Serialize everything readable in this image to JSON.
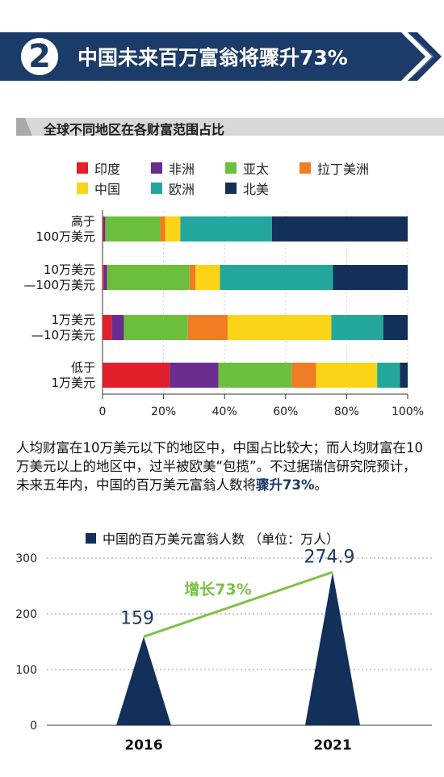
{
  "header": {
    "number": "2",
    "title": "中国未来百万富翁将骤升73%"
  },
  "section": {
    "title": "全球不同地区在各财富范围占比"
  },
  "chart_data": [
    {
      "type": "bar",
      "orientation": "horizontal",
      "stacked": true,
      "categories": [
        "高于\n100万美元",
        "10万美元\n—100万美元",
        "1万美元\n—10万美元",
        "低于\n1万美元"
      ],
      "series": [
        {
          "name": "印度",
          "color": "#e2202c",
          "values": [
            0.4,
            0.5,
            3.0,
            22.0
          ]
        },
        {
          "name": "非洲",
          "color": "#6a2d8f",
          "values": [
            0.5,
            1.0,
            4.0,
            16.0
          ]
        },
        {
          "name": "亚太",
          "color": "#6cbf3d",
          "values": [
            18.0,
            27.0,
            21.0,
            24.0
          ]
        },
        {
          "name": "拉丁美洲",
          "color": "#ee7d23",
          "values": [
            1.6,
            2.0,
            13.0,
            8.0
          ]
        },
        {
          "name": "中国",
          "color": "#fbd417",
          "values": [
            5.0,
            8.0,
            34.0,
            20.0
          ]
        },
        {
          "name": "欧洲",
          "color": "#23a79c",
          "values": [
            30.0,
            37.0,
            17.0,
            7.5
          ]
        },
        {
          "name": "北美",
          "color": "#13305a",
          "values": [
            44.5,
            24.5,
            8.0,
            2.5
          ]
        }
      ],
      "xticks": [
        "0",
        "20%",
        "40%",
        "60%",
        "80%",
        "100%"
      ],
      "xlim": [
        0,
        100
      ],
      "legend": {
        "position": "top",
        "columns": 4
      }
    },
    {
      "type": "area",
      "shape": "triangle",
      "legend_label": "中国的百万美元富翁人数 （单位：万人）",
      "categories": [
        "2016",
        "2021"
      ],
      "values": [
        159,
        274.9
      ],
      "value_labels": [
        "159",
        "274.9"
      ],
      "ylim": [
        0,
        300
      ],
      "yticks": [
        "0",
        "100",
        "200",
        "300"
      ],
      "annotation": "增长73%",
      "bar_color": "#13305a",
      "line_color": "#7cc242",
      "annotation_color": "#7cc242",
      "label_color": "#1b3b68"
    }
  ],
  "text": {
    "p1": "人均财富在10万美元以下的地区中，中国占比较大；而人均财富在10万美元以上的地区中，过半被欧美“包揽”。不过据瑞信研究院预计，未来五年内，中国的百万美元富翁人数将",
    "p1_highlight": "骤升73%",
    "p1_end": "。"
  }
}
